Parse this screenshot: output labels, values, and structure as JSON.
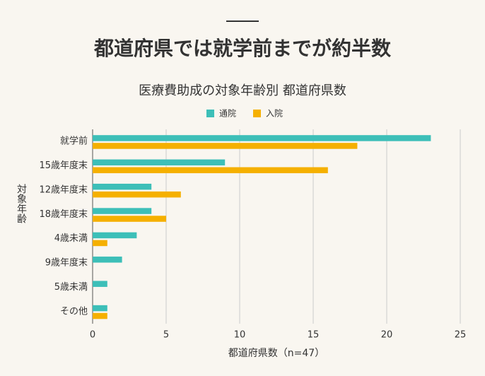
{
  "chart_data": {
    "type": "hbar",
    "headline": "都道府県では就学前までが約半数",
    "title": "医療費助成の対象年齢別 都道府県数",
    "xlabel": "都道府県数（n=47）",
    "ylabel": "対象年齢",
    "categories": [
      "就学前",
      "15歳年度末",
      "12歳年度末",
      "18歳年度末",
      "4歳未満",
      "9歳年度末",
      "5歳未満",
      "その他"
    ],
    "series": [
      {
        "name": "通院",
        "color": "#3dbfb8",
        "values": [
          23,
          9,
          4,
          4,
          3,
          2,
          1,
          1
        ]
      },
      {
        "name": "入院",
        "color": "#f5b000",
        "values": [
          18,
          16,
          6,
          5,
          1,
          0,
          0,
          1
        ]
      }
    ],
    "xlim": [
      0,
      25
    ],
    "xticks": [
      0,
      5,
      10,
      15,
      20,
      25
    ],
    "grid": true,
    "legend": "top"
  }
}
